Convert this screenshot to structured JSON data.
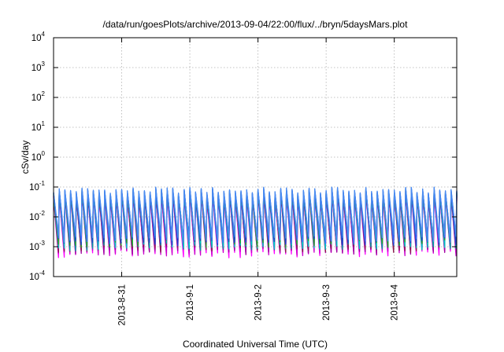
{
  "chart_data": {
    "type": "line",
    "title": "/data/run/goesPlots/archive/2013-09-04/22:00/flux/../bryn/5daysMars.plot",
    "xlabel": "Coordinated Universal Time (UTC)",
    "ylabel": "cSv/day",
    "y_scale": "log",
    "ylim": [
      0.0001,
      10000
    ],
    "y_ticks": [
      {
        "base": "10",
        "exp": "-4",
        "value": 0.0001
      },
      {
        "base": "10",
        "exp": "-3",
        "value": 0.001
      },
      {
        "base": "10",
        "exp": "-2",
        "value": 0.01
      },
      {
        "base": "10",
        "exp": "-1",
        "value": 0.1
      },
      {
        "base": "10",
        "exp": "0",
        "value": 1
      },
      {
        "base": "10",
        "exp": "1",
        "value": 10
      },
      {
        "base": "10",
        "exp": "2",
        "value": 100
      },
      {
        "base": "10",
        "exp": "3",
        "value": 1000
      },
      {
        "base": "10",
        "exp": "4",
        "value": 10000
      }
    ],
    "xlim": [
      "2013-08-30T00:00",
      "2013-09-04T22:00"
    ],
    "x_ticks": [
      "2013-8-31",
      "2013-9-1",
      "2013-9-2",
      "2013-9-3",
      "2013-9-4"
    ],
    "x_tick_dates": [
      "2013-08-31",
      "2013-09-01",
      "2013-09-02",
      "2013-09-03",
      "2013-09-04"
    ],
    "grid": true,
    "pulses_per_day": 12,
    "series_envelope": {
      "peak_range": [
        0.05,
        0.1
      ],
      "trough_range": [
        0.0006,
        0.002
      ]
    },
    "series_colors": [
      "#ff00ff",
      "#cc00cc",
      "#a000a0",
      "#8b1a4f",
      "#00a0a0",
      "#00c8c8",
      "#2aa02a",
      "#1f3fd0",
      "#3a6cff",
      "#4a8cf0"
    ]
  }
}
